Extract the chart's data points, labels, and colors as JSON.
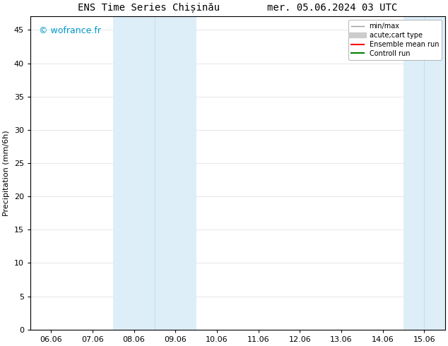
{
  "title": "ENS Time Series Chișinău        mer. 05.06.2024 03 UTC",
  "ylabel": "Precipitation (mm/6h)",
  "background_color": "#ffffff",
  "plot_bg_color": "#ffffff",
  "ylim": [
    0,
    47
  ],
  "yticks": [
    0,
    5,
    10,
    15,
    20,
    25,
    30,
    35,
    40,
    45
  ],
  "xtick_labels": [
    "06.06",
    "07.06",
    "08.06",
    "09.06",
    "10.06",
    "11.06",
    "12.06",
    "13.06",
    "14.06",
    "15.06"
  ],
  "xtick_positions": [
    0,
    1,
    2,
    3,
    4,
    5,
    6,
    7,
    8,
    9
  ],
  "xlim": [
    -0.5,
    9.5
  ],
  "shaded_regions": [
    {
      "xmin": 1.5,
      "xmax": 2.0,
      "color": "#ddeef8"
    },
    {
      "xmin": 2.0,
      "xmax": 2.5,
      "color": "#ddeef8"
    },
    {
      "xmin": 2.5,
      "xmax": 3.0,
      "color": "#ddeef8"
    },
    {
      "xmin": 3.0,
      "xmax": 3.5,
      "color": "#ddeef8"
    },
    {
      "xmin": 8.5,
      "xmax": 9.0,
      "color": "#ddeef8"
    },
    {
      "xmin": 9.0,
      "xmax": 9.5,
      "color": "#ddeef8"
    }
  ],
  "band1_xmin": 1.5,
  "band1_xmax": 3.5,
  "band2_xmin": 8.5,
  "band2_xmax": 9.5,
  "band_color": "#ddeef8",
  "band_edge_color": "#c5dff0",
  "watermark_text": "© wofrance.fr",
  "watermark_color": "#0099cc",
  "legend_items": [
    {
      "label": "min/max",
      "color": "#999999",
      "lw": 1.0,
      "ls": "-"
    },
    {
      "label": "acute;cart type",
      "color": "#cccccc",
      "lw": 6,
      "ls": "-"
    },
    {
      "label": "Ensemble mean run",
      "color": "#ff0000",
      "lw": 1.5,
      "ls": "-"
    },
    {
      "label": "Controll run",
      "color": "#008000",
      "lw": 1.5,
      "ls": "-"
    }
  ],
  "font_size": 8,
  "title_font_size": 10
}
